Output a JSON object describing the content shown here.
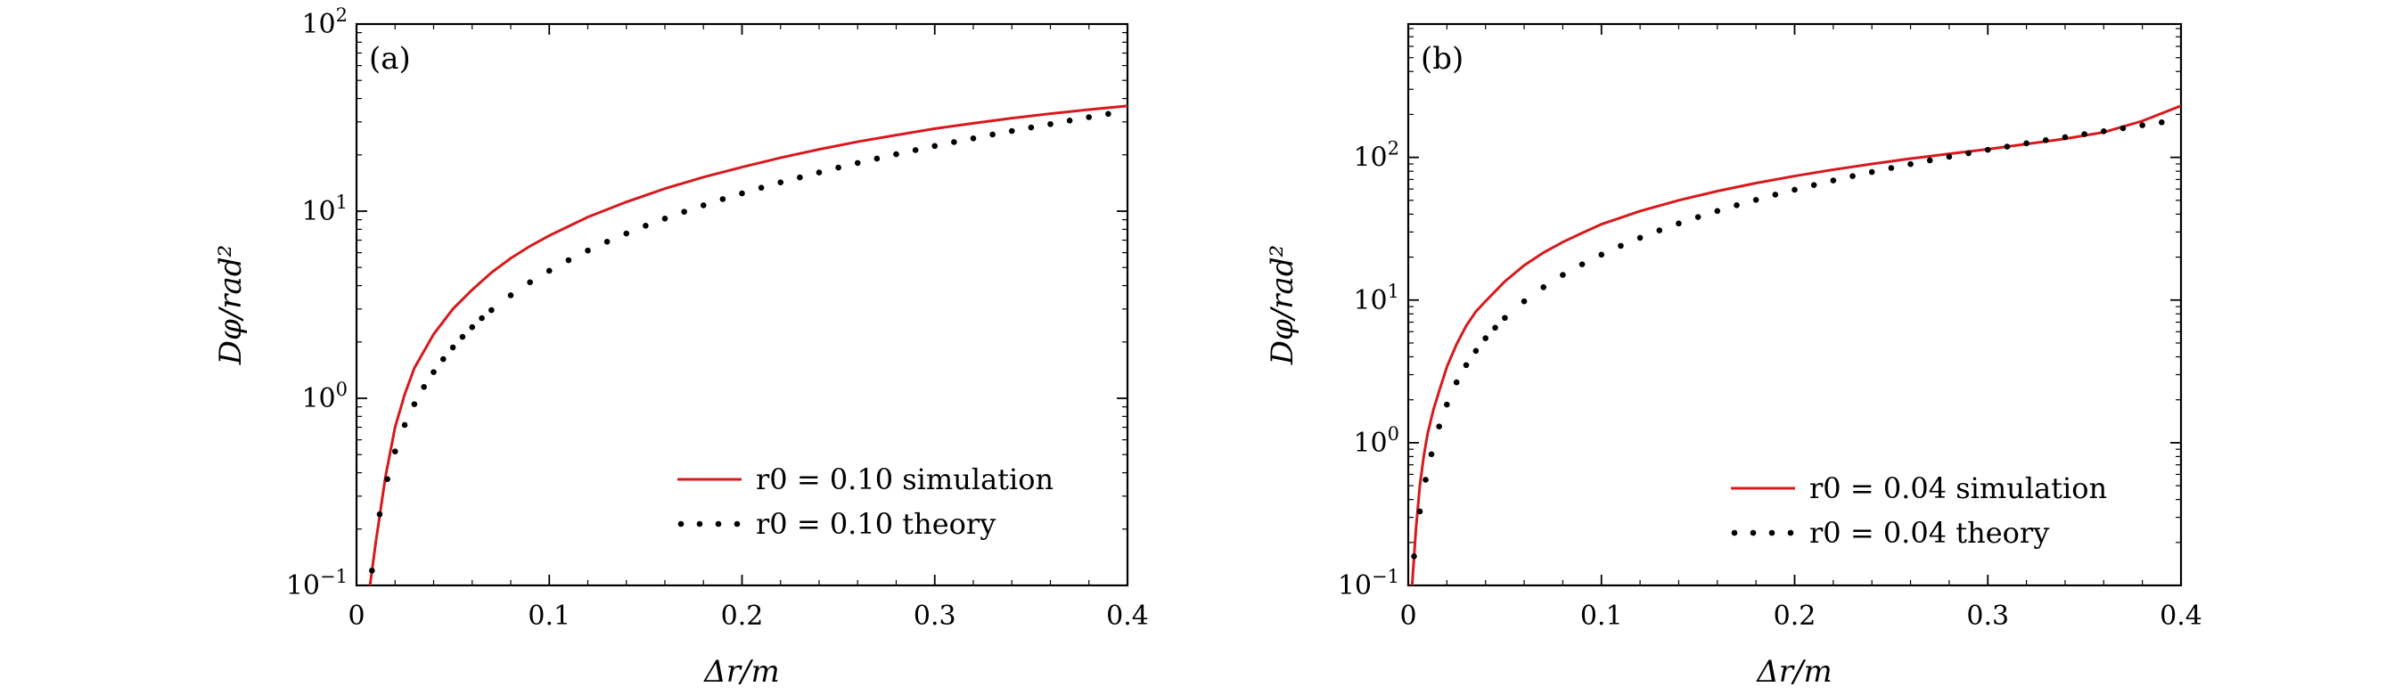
{
  "colors": {
    "simulation": "#d7191c",
    "theory": "#000000"
  },
  "chart_data": [
    {
      "type": "line",
      "panel_label": "(a)",
      "xlabel": "Δr/m",
      "ylabel": "Dφ/rad²",
      "xlim": [
        0,
        0.4
      ],
      "ylim": [
        0.1,
        100
      ],
      "yscale": "log",
      "grid": false,
      "legend_position": "lower-right",
      "x_ticks": [
        {
          "value": 0,
          "label": "0"
        },
        {
          "value": 0.1,
          "label": "0.1"
        },
        {
          "value": 0.2,
          "label": "0.2"
        },
        {
          "value": 0.3,
          "label": "0.3"
        },
        {
          "value": 0.4,
          "label": "0.4"
        }
      ],
      "y_ticks": [
        {
          "value": 0.1,
          "base": "10",
          "exp": "−1"
        },
        {
          "value": 1,
          "base": "10",
          "exp": "0"
        },
        {
          "value": 10,
          "base": "10",
          "exp": "1"
        },
        {
          "value": 100,
          "base": "10",
          "exp": "2"
        }
      ],
      "series": [
        {
          "name": "r0 = 0.10 simulation",
          "style": "solid",
          "x": [
            0.007,
            0.01,
            0.015,
            0.02,
            0.025,
            0.03,
            0.04,
            0.05,
            0.06,
            0.07,
            0.08,
            0.09,
            0.1,
            0.12,
            0.14,
            0.16,
            0.18,
            0.2,
            0.22,
            0.24,
            0.26,
            0.28,
            0.3,
            0.32,
            0.34,
            0.36,
            0.38,
            0.4
          ],
          "y": [
            0.1,
            0.17,
            0.38,
            0.7,
            1.05,
            1.45,
            2.2,
            3.0,
            3.8,
            4.7,
            5.6,
            6.5,
            7.4,
            9.3,
            11.2,
            13.2,
            15.2,
            17.2,
            19.3,
            21.4,
            23.5,
            25.5,
            27.6,
            29.5,
            31.4,
            33.2,
            34.9,
            36.5
          ]
        },
        {
          "name": "r0 = 0.10 theory",
          "style": "dotted",
          "x": [
            0.008,
            0.012,
            0.016,
            0.02,
            0.025,
            0.03,
            0.035,
            0.04,
            0.045,
            0.05,
            0.055,
            0.06,
            0.065,
            0.07,
            0.08,
            0.09,
            0.1,
            0.11,
            0.12,
            0.13,
            0.14,
            0.15,
            0.16,
            0.17,
            0.18,
            0.19,
            0.2,
            0.21,
            0.22,
            0.23,
            0.24,
            0.25,
            0.26,
            0.27,
            0.28,
            0.29,
            0.3,
            0.31,
            0.32,
            0.33,
            0.34,
            0.35,
            0.36,
            0.37,
            0.38,
            0.39
          ],
          "y": [
            0.12,
            0.24,
            0.37,
            0.52,
            0.72,
            0.93,
            1.15,
            1.38,
            1.62,
            1.87,
            2.13,
            2.4,
            2.68,
            2.96,
            3.55,
            4.17,
            4.8,
            5.47,
            6.16,
            6.87,
            7.6,
            8.36,
            9.13,
            9.93,
            10.75,
            11.6,
            12.45,
            13.35,
            14.25,
            15.15,
            16.1,
            17.1,
            18.1,
            19.1,
            20.15,
            21.2,
            22.3,
            23.4,
            24.5,
            25.7,
            26.8,
            28.0,
            29.2,
            30.5,
            31.8,
            33.1
          ]
        }
      ]
    },
    {
      "type": "line",
      "panel_label": "(b)",
      "xlabel": "Δr/m",
      "ylabel": "Dφ/rad²",
      "xlim": [
        0,
        0.4
      ],
      "ylim": [
        0.1,
        860
      ],
      "yscale": "log",
      "grid": false,
      "legend_position": "lower-right",
      "x_ticks": [
        {
          "value": 0,
          "label": "0"
        },
        {
          "value": 0.1,
          "label": "0.1"
        },
        {
          "value": 0.2,
          "label": "0.2"
        },
        {
          "value": 0.3,
          "label": "0.3"
        },
        {
          "value": 0.4,
          "label": "0.4"
        }
      ],
      "y_ticks": [
        {
          "value": 0.1,
          "base": "10",
          "exp": "−1"
        },
        {
          "value": 1,
          "base": "10",
          "exp": "0"
        },
        {
          "value": 10,
          "base": "10",
          "exp": "1"
        },
        {
          "value": 100,
          "base": "10",
          "exp": "2"
        }
      ],
      "series": [
        {
          "name": "r0 = 0.04 simulation",
          "style": "solid",
          "x": [
            0.002,
            0.004,
            0.006,
            0.008,
            0.01,
            0.013,
            0.016,
            0.02,
            0.025,
            0.03,
            0.035,
            0.04,
            0.05,
            0.06,
            0.07,
            0.08,
            0.09,
            0.1,
            0.12,
            0.14,
            0.16,
            0.18,
            0.2,
            0.22,
            0.24,
            0.26,
            0.28,
            0.3,
            0.32,
            0.34,
            0.36,
            0.38,
            0.4
          ],
          "y": [
            0.1,
            0.25,
            0.5,
            0.8,
            1.15,
            1.7,
            2.3,
            3.4,
            4.9,
            6.6,
            8.3,
            9.8,
            13.5,
            17.5,
            21.5,
            25.5,
            29.5,
            34.0,
            42.0,
            50.0,
            58.0,
            66.0,
            74.0,
            82.0,
            90.0,
            98.0,
            106.0,
            114.0,
            124.0,
            135.0,
            150.0,
            180.0,
            230.0
          ]
        },
        {
          "name": "r0 = 0.04 theory",
          "style": "dotted",
          "x": [
            0.003,
            0.006,
            0.009,
            0.012,
            0.016,
            0.02,
            0.025,
            0.03,
            0.035,
            0.04,
            0.045,
            0.05,
            0.06,
            0.07,
            0.08,
            0.09,
            0.1,
            0.11,
            0.12,
            0.13,
            0.14,
            0.15,
            0.16,
            0.17,
            0.18,
            0.19,
            0.2,
            0.21,
            0.22,
            0.23,
            0.24,
            0.25,
            0.26,
            0.27,
            0.28,
            0.29,
            0.3,
            0.31,
            0.32,
            0.33,
            0.34,
            0.35,
            0.36,
            0.37,
            0.38,
            0.39
          ],
          "y": [
            0.16,
            0.33,
            0.55,
            0.83,
            1.3,
            1.85,
            2.65,
            3.5,
            4.4,
            5.4,
            6.4,
            7.5,
            9.8,
            12.3,
            15.0,
            17.8,
            20.8,
            24.0,
            27.3,
            30.8,
            34.4,
            38.2,
            42.1,
            46.2,
            50.4,
            54.8,
            59.3,
            64.0,
            68.9,
            73.9,
            79.0,
            84.3,
            89.7,
            95.3,
            101.0,
            107.0,
            113.0,
            119.0,
            125.5,
            132.0,
            138.5,
            145.5,
            152.5,
            160.0,
            168.0,
            176.0
          ]
        }
      ]
    }
  ]
}
